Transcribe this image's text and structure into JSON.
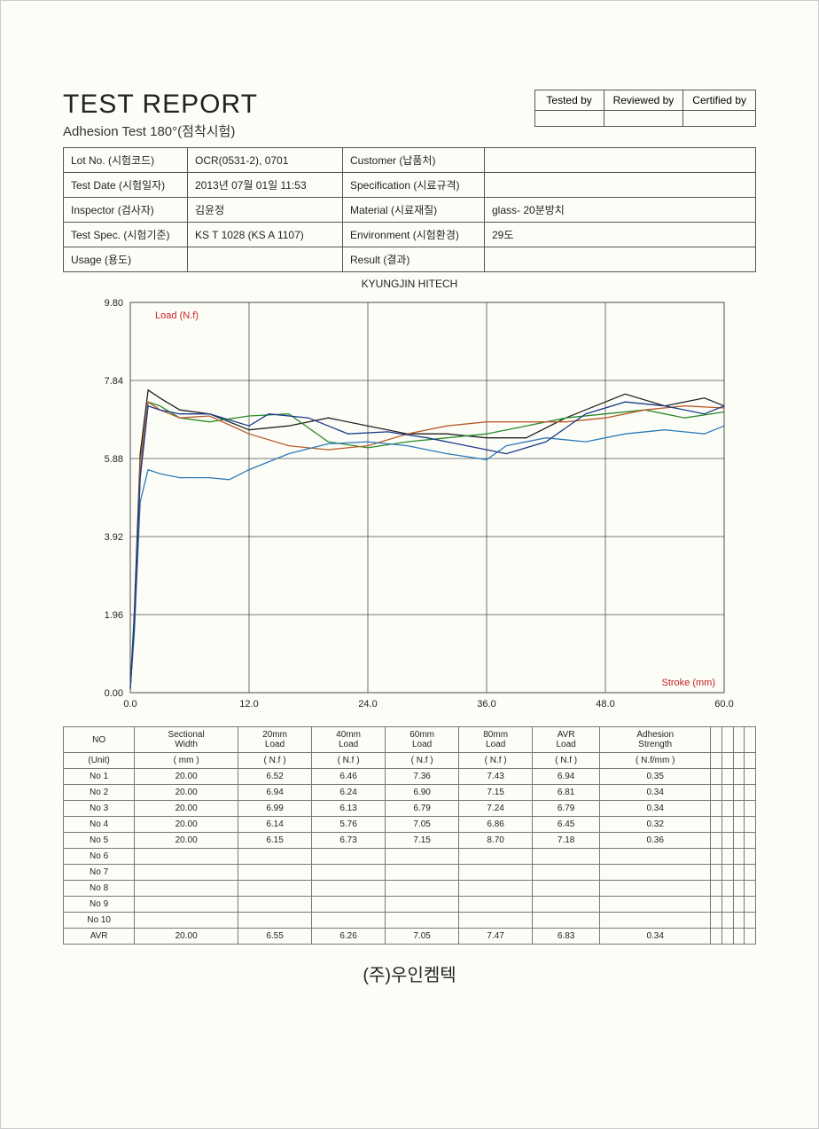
{
  "title": "TEST REPORT",
  "subtitle": "Adhesion Test 180°(점착시험)",
  "sig": {
    "tested": "Tested by",
    "reviewed": "Reviewed by",
    "certified": "Certified by"
  },
  "info": {
    "lot_label": "Lot No. (시험코드)",
    "lot": "OCR(0531-2), 0701",
    "customer_label": "Customer (납품처)",
    "customer": "",
    "date_label": "Test Date (시험일자)",
    "date": "2013년 07월 01일 11:53",
    "spec_label": "Specification (시료규격)",
    "spec": "",
    "inspector_label": "Inspector (검사자)",
    "inspector": "김윤정",
    "material_label": "Material (시료재질)",
    "material": "glass- 20분방치",
    "testspec_label": "Test Spec. (시험기준)",
    "testspec": "KS T 1028 (KS A 1107)",
    "env_label": "Environment (시험환경)",
    "env": "29도",
    "usage_label": "Usage (용도)",
    "usage": "",
    "result_label": "Result (결과)",
    "result": ""
  },
  "chart": {
    "title": "KYUNGJIN HITECH",
    "y_label": "Load (N.f)",
    "y_label_color": "#c62020",
    "x_label": "Stroke (mm)",
    "x_label_color": "#c62020",
    "xlim": [
      0,
      60
    ],
    "ylim": [
      0,
      9.8
    ],
    "xticks": [
      0.0,
      12.0,
      24.0,
      36.0,
      48.0,
      60.0
    ],
    "yticks": [
      0.0,
      1.96,
      3.92,
      5.88,
      7.84,
      9.8
    ],
    "grid_color": "#4a4a4a",
    "line_width": 1.3,
    "series": [
      {
        "color": "#222222",
        "x": [
          0,
          0.4,
          1.0,
          1.8,
          3.0,
          5,
          8,
          12,
          16,
          20,
          24,
          28,
          32,
          36,
          40,
          44,
          48,
          50,
          54,
          58,
          60
        ],
        "y": [
          0.1,
          2.0,
          6.0,
          7.6,
          7.4,
          7.1,
          7.0,
          6.6,
          6.7,
          6.9,
          6.7,
          6.5,
          6.5,
          6.4,
          6.4,
          6.9,
          7.3,
          7.5,
          7.2,
          7.4,
          7.2
        ]
      },
      {
        "color": "#2a8a2a",
        "x": [
          0,
          0.4,
          1.0,
          1.8,
          3.0,
          5,
          8,
          12,
          16,
          20,
          24,
          28,
          32,
          36,
          40,
          44,
          48,
          52,
          56,
          60
        ],
        "y": [
          0.1,
          1.8,
          5.5,
          7.3,
          7.2,
          6.9,
          6.8,
          6.95,
          7.0,
          6.3,
          6.15,
          6.3,
          6.4,
          6.5,
          6.7,
          6.9,
          7.0,
          7.1,
          6.9,
          7.05
        ]
      },
      {
        "color": "#b85a2a",
        "x": [
          0,
          0.4,
          1.0,
          1.8,
          3.0,
          5,
          8,
          12,
          16,
          20,
          24,
          28,
          32,
          36,
          40,
          44,
          48,
          52,
          56,
          60
        ],
        "y": [
          0.1,
          1.6,
          5.8,
          7.3,
          7.1,
          6.9,
          6.95,
          6.5,
          6.2,
          6.1,
          6.2,
          6.5,
          6.7,
          6.8,
          6.8,
          6.8,
          6.9,
          7.1,
          7.2,
          7.15
        ]
      },
      {
        "color": "#2a7ab8",
        "x": [
          0,
          0.4,
          1.0,
          1.8,
          3.0,
          5,
          8,
          10,
          12,
          16,
          20,
          24,
          28,
          32,
          36,
          38,
          42,
          46,
          50,
          54,
          58,
          60
        ],
        "y": [
          0.1,
          1.5,
          4.8,
          5.6,
          5.5,
          5.4,
          5.4,
          5.35,
          5.6,
          6.0,
          6.25,
          6.3,
          6.2,
          6.0,
          5.85,
          6.2,
          6.4,
          6.3,
          6.5,
          6.6,
          6.5,
          6.7
        ]
      },
      {
        "color": "#1a3a8a",
        "x": [
          0,
          0.4,
          1.0,
          1.8,
          3.0,
          5,
          8,
          12,
          14,
          18,
          22,
          26,
          30,
          34,
          38,
          42,
          46,
          50,
          54,
          58,
          60
        ],
        "y": [
          0.1,
          1.7,
          5.4,
          7.2,
          7.1,
          7.0,
          7.0,
          6.7,
          7.0,
          6.9,
          6.5,
          6.55,
          6.4,
          6.2,
          6.0,
          6.3,
          7.0,
          7.3,
          7.2,
          7.0,
          7.2
        ]
      }
    ]
  },
  "table": {
    "headers_top": [
      "NO",
      "Sectional Width",
      "20mm Load",
      "40mm Load",
      "60mm Load",
      "80mm Load",
      "AVR Load",
      "Adhesion Strength",
      "",
      "",
      "",
      ""
    ],
    "headers_unit": [
      "(Unit)",
      "( mm )",
      "( N.f )",
      "( N.f )",
      "( N.f )",
      "( N.f )",
      "( N.f )",
      "( N.f/mm )",
      "",
      "",
      "",
      ""
    ],
    "rows": [
      [
        "No  1",
        "20.00",
        "6.52",
        "6.46",
        "7.36",
        "7.43",
        "6.94",
        "0.35",
        "",
        "",
        "",
        ""
      ],
      [
        "No  2",
        "20.00",
        "6.94",
        "6.24",
        "6.90",
        "7.15",
        "6.81",
        "0.34",
        "",
        "",
        "",
        ""
      ],
      [
        "No  3",
        "20.00",
        "6.99",
        "6.13",
        "6.79",
        "7.24",
        "6.79",
        "0.34",
        "",
        "",
        "",
        ""
      ],
      [
        "No  4",
        "20.00",
        "6.14",
        "5.76",
        "7.05",
        "6.86",
        "6.45",
        "0.32",
        "",
        "",
        "",
        ""
      ],
      [
        "No  5",
        "20.00",
        "6.15",
        "6.73",
        "7.15",
        "8.70",
        "7.18",
        "0.36",
        "",
        "",
        "",
        ""
      ],
      [
        "No  6",
        "",
        "",
        "",
        "",
        "",
        "",
        "",
        "",
        "",
        "",
        ""
      ],
      [
        "No  7",
        "",
        "",
        "",
        "",
        "",
        "",
        "",
        "",
        "",
        "",
        ""
      ],
      [
        "No  8",
        "",
        "",
        "",
        "",
        "",
        "",
        "",
        "",
        "",
        "",
        ""
      ],
      [
        "No  9",
        "",
        "",
        "",
        "",
        "",
        "",
        "",
        "",
        "",
        "",
        ""
      ],
      [
        "No 10",
        "",
        "",
        "",
        "",
        "",
        "",
        "",
        "",
        "",
        "",
        ""
      ]
    ],
    "avr": [
      "AVR",
      "20.00",
      "6.55",
      "6.26",
      "7.05",
      "7.47",
      "6.83",
      "0.34",
      "",
      "",
      "",
      ""
    ]
  },
  "company": "(주)우인켐텍"
}
